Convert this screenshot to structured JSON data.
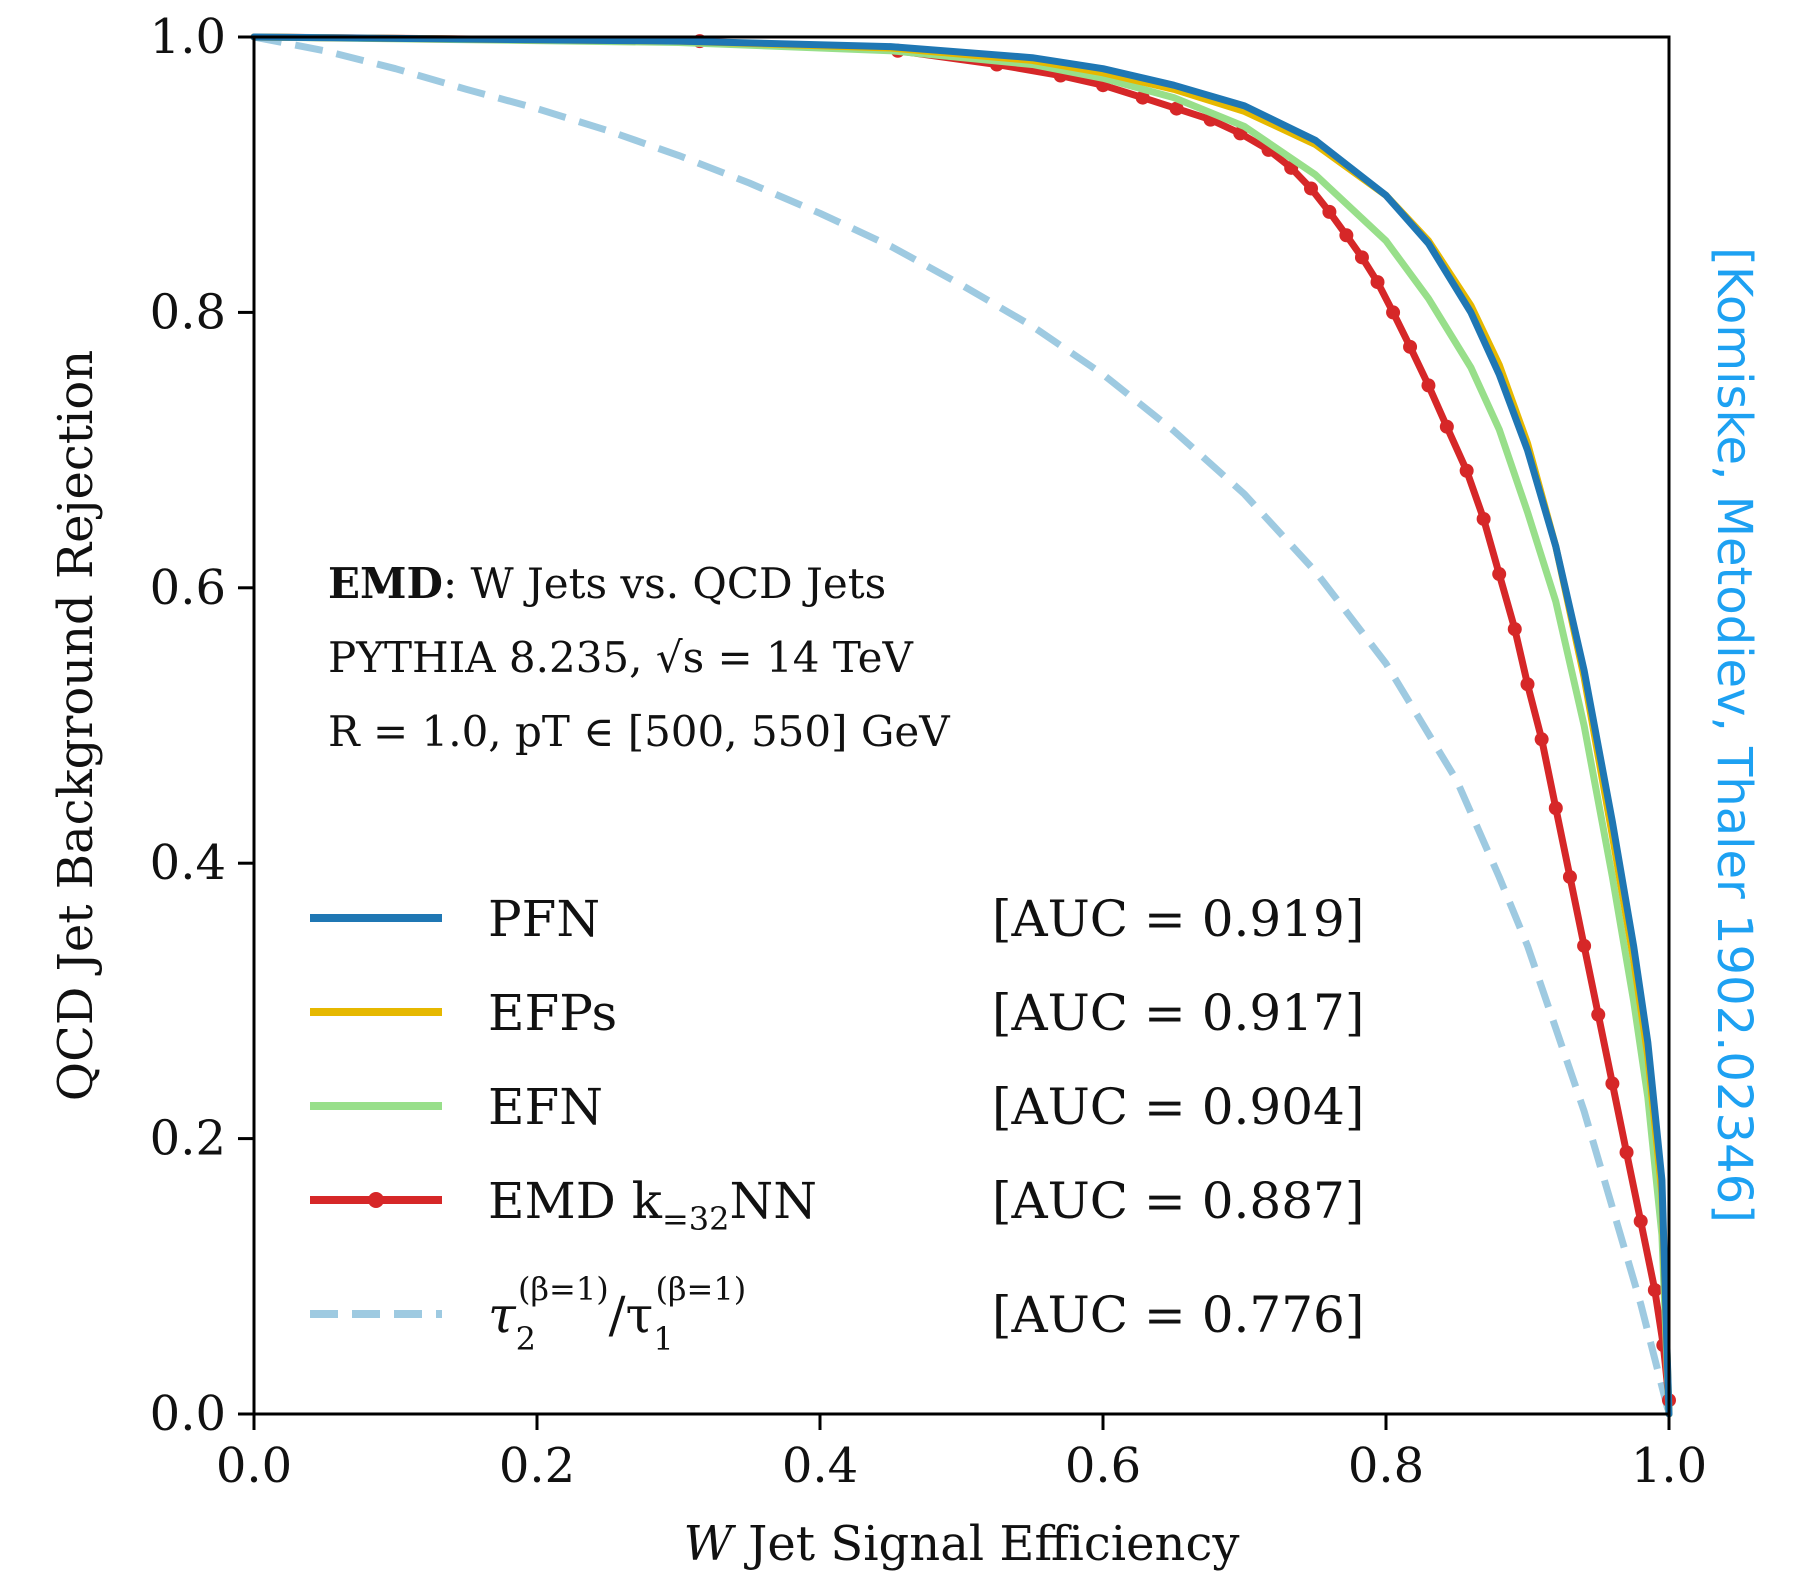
{
  "chart_data": {
    "type": "line",
    "xlabel_var": "W",
    "xlabel_rest": " Jet Signal Efficiency",
    "ylabel": "QCD Jet Background Rejection",
    "xlim": [
      0.0,
      1.0
    ],
    "ylim": [
      0.0,
      1.0
    ],
    "xticks": [
      "0.0",
      "0.2",
      "0.4",
      "0.6",
      "0.8",
      "1.0"
    ],
    "yticks": [
      "0.0",
      "0.2",
      "0.4",
      "0.6",
      "0.8",
      "1.0"
    ],
    "grid": false,
    "legend_position": "lower-left",
    "annotation": {
      "line1_bold": "EMD",
      "line1_rest": ": W Jets vs. QCD Jets",
      "line2": "PYTHIA 8.235, √s = 14 TeV",
      "line3": "R = 1.0, pT ∈ [500, 550] GeV"
    },
    "credit": "[Komiske, Metodiev, Thaler 1902.02346]",
    "series": [
      {
        "name": "PFN",
        "auc": "[AUC = 0.919]",
        "color": "#1f77b4",
        "style": "solid",
        "markers": false,
        "x": [
          0.0,
          0.3,
          0.45,
          0.55,
          0.6,
          0.65,
          0.7,
          0.75,
          0.8,
          0.83,
          0.86,
          0.88,
          0.9,
          0.92,
          0.94,
          0.96,
          0.975,
          0.985,
          0.995,
          1.0
        ],
        "y": [
          1.0,
          0.997,
          0.993,
          0.985,
          0.977,
          0.965,
          0.95,
          0.925,
          0.885,
          0.85,
          0.8,
          0.755,
          0.7,
          0.63,
          0.54,
          0.43,
          0.34,
          0.27,
          0.17,
          0.0
        ]
      },
      {
        "name": "EFPs",
        "auc": "[AUC = 0.917]",
        "color": "#e6b800",
        "style": "solid",
        "markers": false,
        "x": [
          0.0,
          0.3,
          0.45,
          0.55,
          0.6,
          0.65,
          0.7,
          0.75,
          0.8,
          0.83,
          0.86,
          0.88,
          0.9,
          0.92,
          0.94,
          0.96,
          0.975,
          0.985,
          0.995,
          1.0
        ],
        "y": [
          1.0,
          0.997,
          0.992,
          0.983,
          0.974,
          0.962,
          0.946,
          0.922,
          0.885,
          0.852,
          0.805,
          0.762,
          0.705,
          0.63,
          0.535,
          0.42,
          0.33,
          0.26,
          0.16,
          0.0
        ]
      },
      {
        "name": "EFN",
        "auc": "[AUC = 0.904]",
        "color": "#98df8a",
        "style": "solid",
        "markers": false,
        "x": [
          0.0,
          0.3,
          0.45,
          0.55,
          0.6,
          0.65,
          0.7,
          0.75,
          0.8,
          0.83,
          0.86,
          0.88,
          0.9,
          0.92,
          0.94,
          0.96,
          0.975,
          0.985,
          0.995,
          1.0
        ],
        "y": [
          1.0,
          0.996,
          0.99,
          0.98,
          0.97,
          0.956,
          0.935,
          0.9,
          0.852,
          0.81,
          0.76,
          0.715,
          0.655,
          0.59,
          0.5,
          0.39,
          0.3,
          0.23,
          0.13,
          0.0
        ]
      },
      {
        "name": "EMD k=32NN",
        "name_main": "EMD k",
        "name_sub": "=32",
        "name_end": "NN",
        "auc": "[AUC = 0.887]",
        "color": "#d62728",
        "style": "solid",
        "markers": true,
        "x": [
          0.0,
          0.315,
          0.455,
          0.525,
          0.57,
          0.6,
          0.628,
          0.652,
          0.676,
          0.697,
          0.717,
          0.733,
          0.747,
          0.76,
          0.772,
          0.783,
          0.794,
          0.805,
          0.817,
          0.83,
          0.843,
          0.857,
          0.869,
          0.88,
          0.891,
          0.9,
          0.91,
          0.92,
          0.93,
          0.94,
          0.95,
          0.96,
          0.97,
          0.98,
          0.99,
          0.996,
          1.0
        ],
        "y": [
          1.0,
          0.997,
          0.99,
          0.98,
          0.972,
          0.965,
          0.956,
          0.948,
          0.94,
          0.93,
          0.918,
          0.905,
          0.89,
          0.873,
          0.856,
          0.84,
          0.822,
          0.8,
          0.775,
          0.747,
          0.717,
          0.685,
          0.65,
          0.61,
          0.57,
          0.53,
          0.49,
          0.44,
          0.39,
          0.34,
          0.29,
          0.24,
          0.19,
          0.14,
          0.09,
          0.05,
          0.01
        ]
      },
      {
        "name": "τ2(β=1)/τ1(β=1)",
        "name_tau": "τ",
        "name_sub1": "2",
        "name_sup1": "(β=1)",
        "name_slash": "/τ",
        "name_sub2": "1",
        "name_sup2": "(β=1)",
        "auc": "[AUC = 0.776]",
        "color": "#9ecae1",
        "style": "dashed",
        "markers": false,
        "x": [
          0.0,
          0.05,
          0.1,
          0.15,
          0.2,
          0.25,
          0.3,
          0.35,
          0.4,
          0.45,
          0.5,
          0.55,
          0.6,
          0.65,
          0.7,
          0.75,
          0.8,
          0.85,
          0.88,
          0.9,
          0.92,
          0.94,
          0.96,
          0.98,
          0.99,
          1.0
        ],
        "y": [
          1.0,
          0.99,
          0.977,
          0.962,
          0.948,
          0.932,
          0.914,
          0.894,
          0.872,
          0.848,
          0.82,
          0.79,
          0.755,
          0.714,
          0.668,
          0.612,
          0.545,
          0.46,
          0.39,
          0.34,
          0.28,
          0.22,
          0.15,
          0.08,
          0.04,
          0.0
        ]
      }
    ]
  }
}
